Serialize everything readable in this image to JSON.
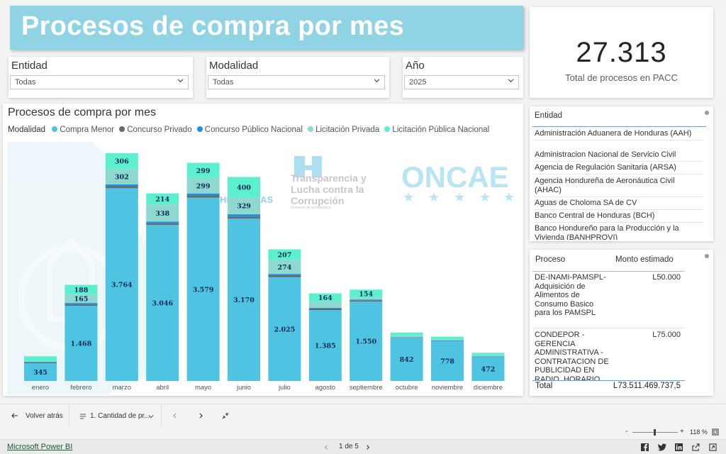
{
  "header": {
    "title": "Procesos de compra por mes"
  },
  "filters": [
    {
      "label": "Entidad",
      "value": "Todas"
    },
    {
      "label": "Modalidad",
      "value": "Todas"
    },
    {
      "label": "Año",
      "value": "2025"
    }
  ],
  "kpi": {
    "value": "27.313",
    "label": "Total de procesos en PACC"
  },
  "chart": {
    "title": "Procesos de compra por mes",
    "legend_title": "Modalidad",
    "logos": {
      "transparencia": "Transparencia y Lucha contra la Corrupción",
      "transparencia_sub": "Gobierno de la República",
      "honduras": "HONDURAS",
      "oncae": "ONCAE"
    }
  },
  "chart_data": {
    "type": "bar",
    "stacked": true,
    "title": "Procesos de compra por mes",
    "legend_title": "Modalidad",
    "categories": [
      "enero",
      "febrero",
      "marzo",
      "abril",
      "mayo",
      "junio",
      "julio",
      "agosto",
      "septiembre",
      "octubre",
      "noviembre",
      "diciembre"
    ],
    "series": [
      {
        "name": "Compra Menor",
        "color": "#4fc3e2",
        "values": [
          345,
          1468,
          3764,
          3046,
          3579,
          3170,
          2025,
          1385,
          1550,
          842,
          778,
          472
        ]
      },
      {
        "name": "Concurso Privado",
        "color": "#666b70",
        "values": [
          15,
          30,
          40,
          35,
          45,
          40,
          40,
          30,
          25,
          8,
          6,
          4
        ]
      },
      {
        "name": "Concurso Público Nacional",
        "color": "#1f8fe0",
        "values": [
          12,
          25,
          35,
          30,
          38,
          45,
          25,
          12,
          15,
          6,
          5,
          4
        ]
      },
      {
        "name": "Licitación Privada",
        "color": "#8fd8d0",
        "values": [
          10,
          165,
          302,
          338,
          299,
          329,
          274,
          120,
          40,
          20,
          15,
          20
        ]
      },
      {
        "name": "Licitación Pública Nacional",
        "color": "#5cf0cf",
        "values": [
          100,
          188,
          306,
          214,
          299,
          400,
          207,
          164,
          154,
          70,
          60,
          50
        ]
      }
    ],
    "data_labels": {
      "Compra Menor": [
        "345",
        "1.468",
        "3.764",
        "3.046",
        "3.579",
        "3.170",
        "2.025",
        "1.385",
        "1.550",
        "842",
        "778",
        "472"
      ],
      "Licitación Privada": [
        "",
        "165",
        "302",
        "338",
        "299",
        "329",
        "274",
        "",
        "",
        "",
        "",
        ""
      ],
      "Licitación Pública Nacional": [
        "",
        "188",
        "306",
        "214",
        "299",
        "400",
        "207",
        "164",
        "154",
        "",
        "",
        ""
      ]
    },
    "grid": false,
    "legend_position": "top-left"
  },
  "entity_list": {
    "header": "Entidad",
    "items": [
      "Administración Aduanera de Honduras (AAH)",
      "Administracion Nacional de Servicio Civil",
      "Agencia de Regulación Sanitaria (ARSA)",
      "Agencia Hondureña de Aeronáutica Civil (AHAC)",
      "Aguas de Choloma SA de CV",
      "Banco Central de Honduras (BCH)",
      "Banco Hondureño para la Producción y la Vivienda (BANHPROVI)"
    ]
  },
  "process_table": {
    "col_process": "Proceso",
    "col_amount": "Monto estimado",
    "rows": [
      {
        "process": "DE-INAMI-PAMSPL-Adquisición de Alimentos de Consumo Basico para los PAMSPL",
        "amount": "L50.000"
      },
      {
        "process": "CONDEPOR - GERENCIA ADMINISTRATIVA - CONTRATACION DE PUBLICIDAD EN RADIO, HORARIO",
        "amount": "L75.000"
      }
    ],
    "total_label": "Total",
    "total_value": "L73.511.469.737,5"
  },
  "toolbar": {
    "back_label": "Volver atrás",
    "page_tab_label": "1. Cantidad de pr..."
  },
  "zoom": {
    "value": "118 %"
  },
  "statusbar": {
    "powerbi_link": "Microsoft Power BI",
    "pagination": "1 de 5"
  }
}
